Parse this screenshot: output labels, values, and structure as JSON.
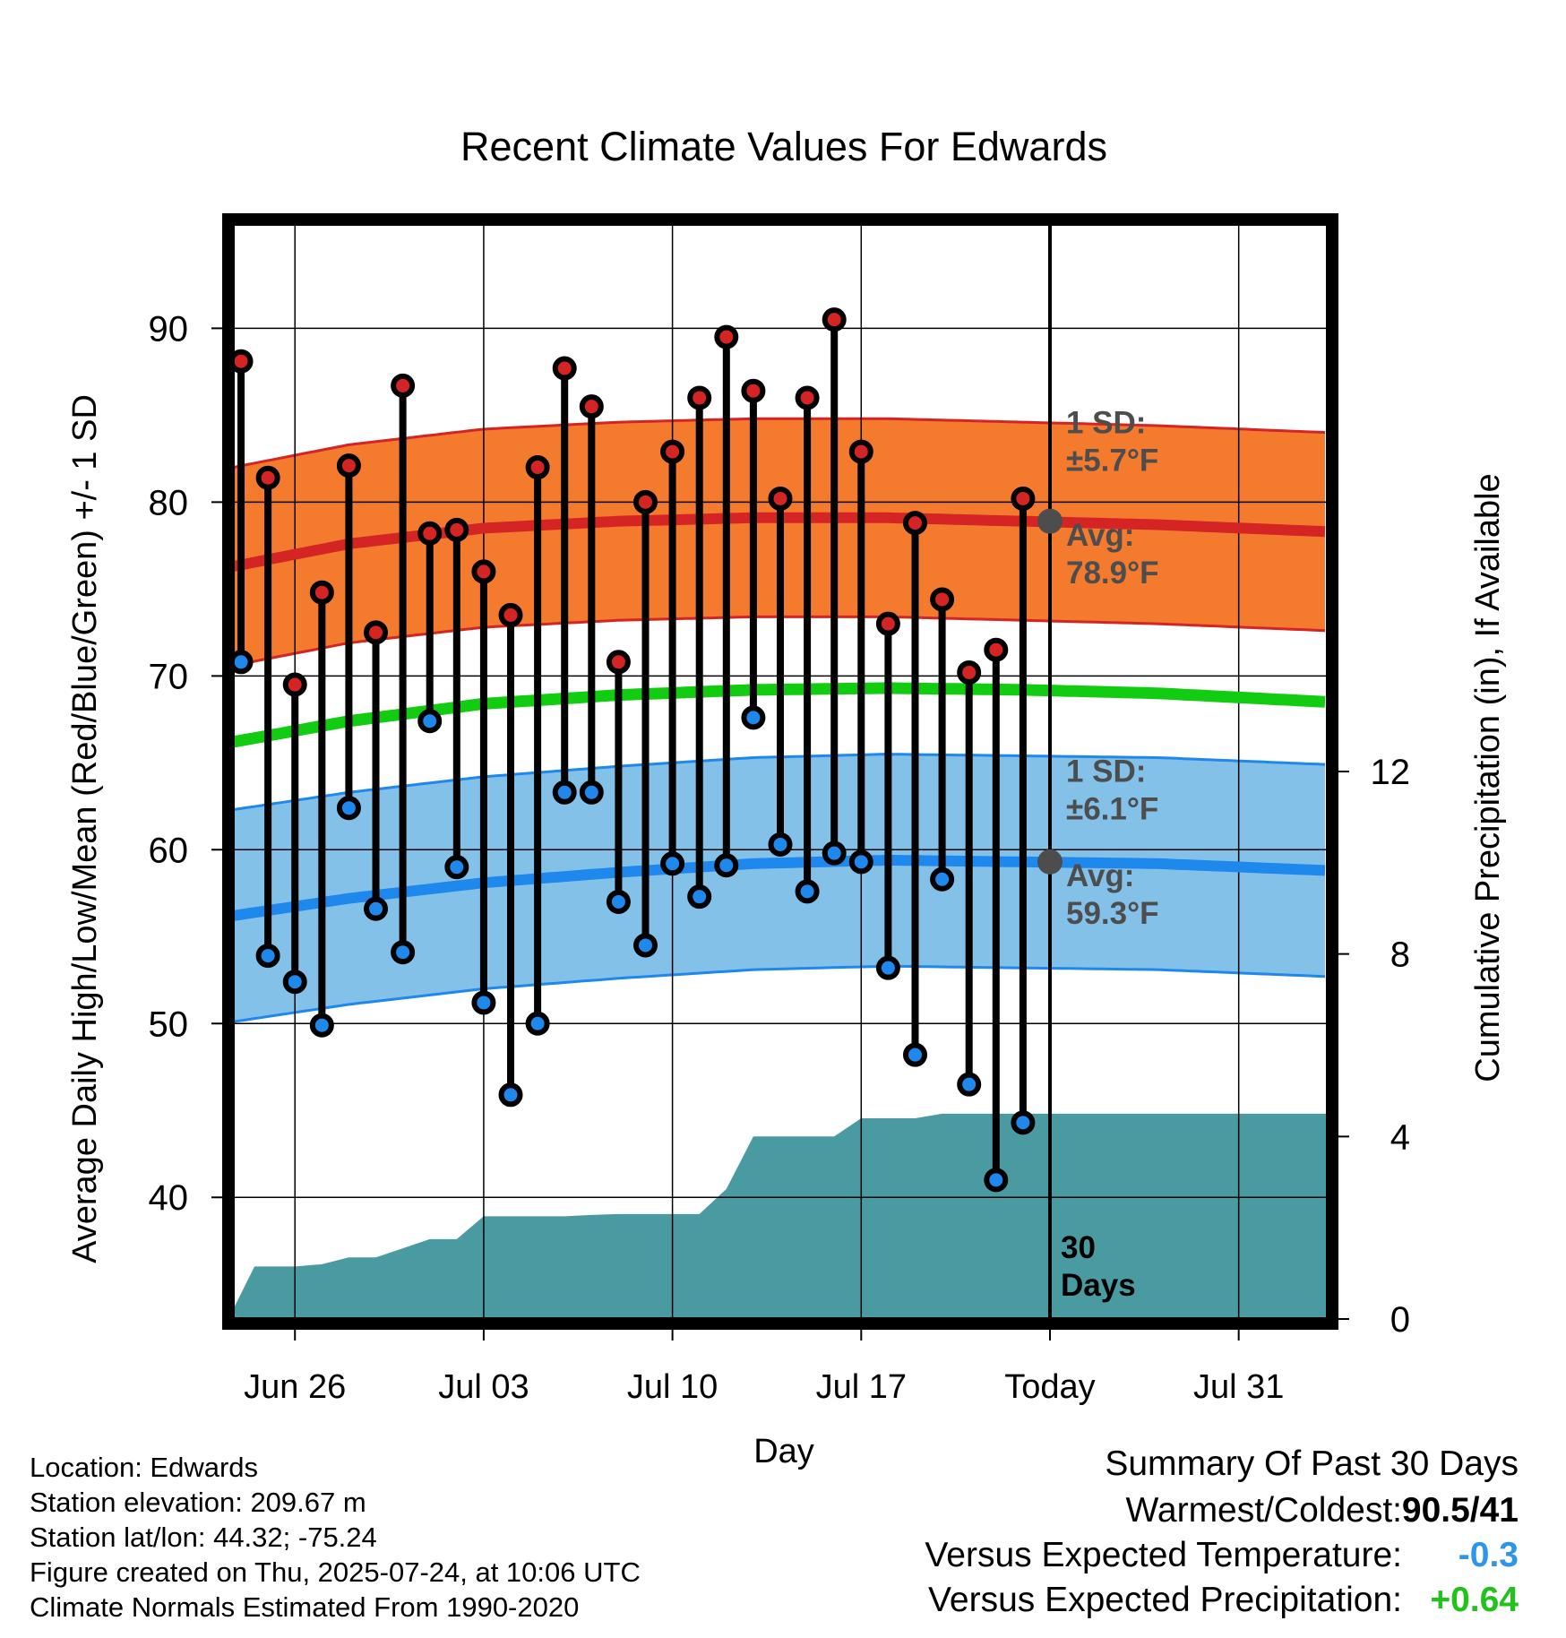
{
  "chart_data": {
    "type": "line",
    "title": "Recent Climate Values For Edwards",
    "xlabel": "Day",
    "ylabel": "Average Daily High/Low/Mean (Red/Blue/Green) +/- 1 SD",
    "y2label": "Cumulative Precipitation (in), If Available",
    "x_start_date": "2025-06-23",
    "xlim_days": [
      0.7,
      41.3
    ],
    "ylim": [
      33,
      96
    ],
    "y2lim": [
      0,
      24
    ],
    "x_ticks": [
      {
        "day": 3,
        "label": "Jun 26"
      },
      {
        "day": 10,
        "label": "Jul 03"
      },
      {
        "day": 17,
        "label": "Jul 10"
      },
      {
        "day": 24,
        "label": "Jul 17"
      },
      {
        "day": 31,
        "label": "Today"
      },
      {
        "day": 38,
        "label": "Jul 31"
      }
    ],
    "y_ticks": [
      40,
      50,
      60,
      70,
      80,
      90
    ],
    "y2_ticks": [
      0,
      4,
      8,
      12
    ],
    "today_day": 31,
    "period_label": [
      "30",
      "Days"
    ],
    "daily": {
      "days": [
        1,
        2,
        3,
        4,
        5,
        6,
        7,
        8,
        9,
        10,
        11,
        12,
        13,
        14,
        15,
        16,
        17,
        18,
        19,
        20,
        21,
        22,
        23,
        24,
        25,
        26,
        27,
        28,
        29,
        30
      ],
      "highs": [
        88.1,
        81.4,
        69.5,
        74.8,
        82.1,
        72.5,
        86.7,
        78.2,
        78.4,
        76.0,
        73.5,
        82.0,
        87.7,
        85.5,
        70.8,
        80.0,
        82.9,
        86.0,
        89.5,
        86.4,
        80.2,
        86.0,
        90.5,
        82.9,
        73.0,
        78.8,
        74.4,
        70.2,
        71.5,
        80.2
      ],
      "lows": [
        70.8,
        53.9,
        52.4,
        49.9,
        62.4,
        56.6,
        54.1,
        67.4,
        59.0,
        51.2,
        45.9,
        50.0,
        63.3,
        63.3,
        57.0,
        54.5,
        59.2,
        57.3,
        59.1,
        67.6,
        60.3,
        57.6,
        59.8,
        59.3,
        53.2,
        48.2,
        58.3,
        46.5,
        41.0,
        44.3
      ]
    },
    "normals": {
      "days": [
        0.7,
        5,
        10,
        15,
        20,
        25,
        30,
        35,
        41.3
      ],
      "avg_high": [
        76.3,
        77.6,
        78.5,
        78.9,
        79.1,
        79.1,
        78.9,
        78.7,
        78.3
      ],
      "avg_high_sd": 5.7,
      "avg_mean": [
        66.2,
        67.4,
        68.4,
        68.9,
        69.2,
        69.3,
        69.2,
        69.0,
        68.5
      ],
      "avg_low": [
        56.2,
        57.2,
        58.1,
        58.7,
        59.2,
        59.4,
        59.3,
        59.2,
        58.8
      ],
      "avg_low_sd": 6.1
    },
    "precip": {
      "days": [
        0.7,
        1.5,
        2,
        3,
        4,
        5,
        6,
        7,
        8,
        9,
        10,
        11,
        12,
        13,
        14,
        15,
        16,
        17,
        18,
        19,
        20,
        21,
        22,
        23,
        24,
        25,
        26,
        27,
        41.3
      ],
      "cumulative": [
        0.2,
        1.15,
        1.15,
        1.15,
        1.2,
        1.35,
        1.35,
        1.55,
        1.75,
        1.75,
        2.25,
        2.25,
        2.25,
        2.25,
        2.28,
        2.3,
        2.3,
        2.3,
        2.3,
        2.85,
        4.0,
        4.0,
        4.0,
        4.0,
        4.4,
        4.4,
        4.4,
        4.5,
        4.5
      ]
    },
    "annotations": {
      "high_sd_label": [
        "1 SD:",
        "±5.7°F"
      ],
      "high_avg_label": [
        "Avg:",
        "78.9°F"
      ],
      "low_sd_label": [
        "1 SD:",
        "±6.1°F"
      ],
      "low_avg_label": [
        "Avg:",
        "59.3°F"
      ],
      "today_high_avg": 78.9,
      "today_low_avg": 59.3
    },
    "colors": {
      "high_band": "#f47a2e",
      "high_line": "#d42424",
      "mean_line": "#11cc11",
      "low_band": "#84c1e8",
      "low_line": "#1e88ec",
      "precip": "#4a9aa2",
      "high_dot": "#d42424",
      "low_dot": "#1e88ec",
      "annotation": "#4d4d4d"
    }
  },
  "info": {
    "location": "Location: Edwards",
    "elevation": "Station elevation: 209.67 m",
    "latlon": "Station lat/lon: 44.32; -75.24",
    "created": "Figure created on Thu, 2025-07-24, at 10:06 UTC",
    "normals": "Climate Normals Estimated From 1990-2020"
  },
  "summary": {
    "title": "Summary Of Past 30 Days",
    "warmest_label": "Warmest/Coldest:",
    "warmest_value": "90.5/41",
    "temp_label": "Versus Expected Temperature:",
    "temp_value": "-0.3",
    "precip_label": "Versus Expected Precipitation:",
    "precip_value": "+0.64"
  }
}
